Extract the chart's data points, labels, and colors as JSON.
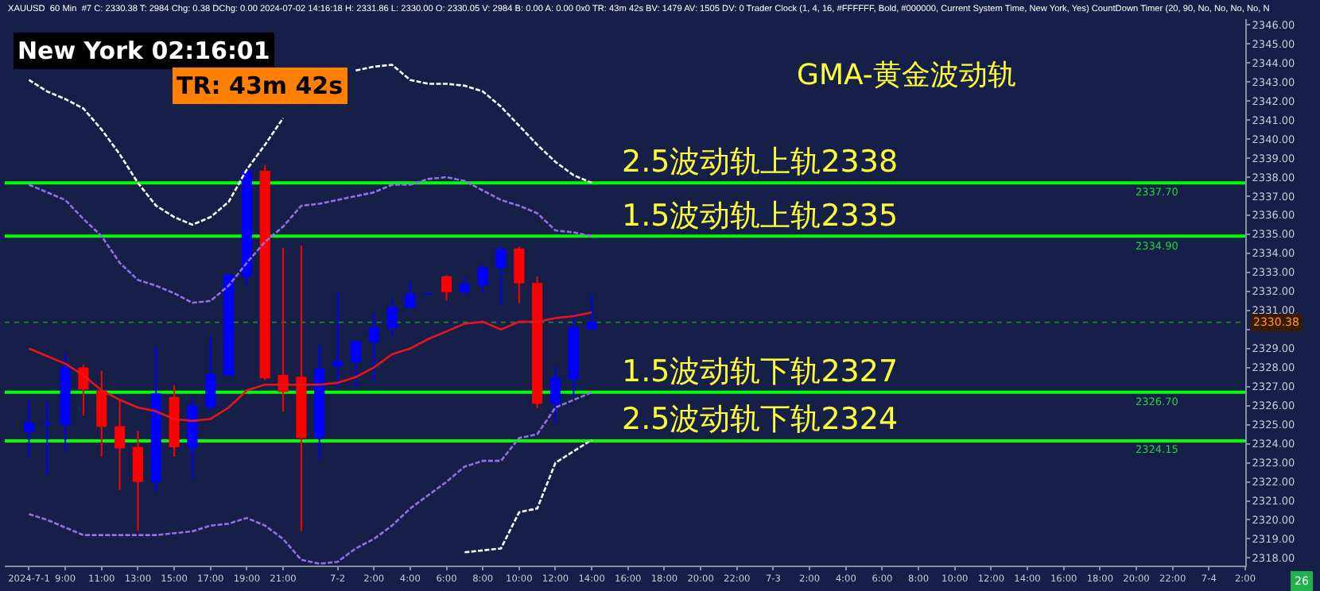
{
  "chart_data": {
    "type": "candlestick",
    "subtitle": "XAUUSD  60 Min  #7 C: 2330.38 T: 2984 Chg: 0.38 DChg: 0.00 2024-07-02 14:16:18 H: 2331.86 L: 2330.00 O: 2330.05 V: 2984 B: 0.00 A: 0.00 0x0 TR: 43m 42s BV: 1479 AV: 1505 DV: 0 Trader Clock (1, 4, 16, #FFFFFF, Bold, #000000, Current System Time, New York, Yes) CountDown Timer (20, 90, No, No, No, No, N",
    "x": [
      "2024-07-01T07:00",
      "2024-07-01T08:00",
      "2024-07-01T09:00",
      "2024-07-01T10:00",
      "2024-07-01T11:00",
      "2024-07-01T12:00",
      "2024-07-01T13:00",
      "2024-07-01T14:00",
      "2024-07-01T15:00",
      "2024-07-01T16:00",
      "2024-07-01T17:00",
      "2024-07-01T18:00",
      "2024-07-01T19:00",
      "2024-07-01T20:00",
      "2024-07-01T21:00",
      "2024-07-01T22:00",
      "2024-07-01T23:00",
      "2024-07-02T00:00",
      "2024-07-02T01:00",
      "2024-07-02T02:00",
      "2024-07-02T03:00",
      "2024-07-02T04:00",
      "2024-07-02T05:00",
      "2024-07-02T06:00",
      "2024-07-02T07:00",
      "2024-07-02T08:00",
      "2024-07-02T09:00",
      "2024-07-02T10:00",
      "2024-07-02T11:00",
      "2024-07-02T12:00",
      "2024-07-02T13:00",
      "2024-07-02T14:00"
    ],
    "ohlc": [
      [
        2324.66,
        2326.28,
        2323.32,
        2325.07
      ],
      [
        2325.04,
        2326.14,
        2322.38,
        2325.04
      ],
      [
        2325.04,
        2328.78,
        2323.64,
        2327.97
      ],
      [
        2327.97,
        2328.16,
        2325.47,
        2326.89
      ],
      [
        2326.76,
        2327.83,
        2323.32,
        2324.93
      ],
      [
        2324.88,
        2326.28,
        2321.57,
        2323.8
      ],
      [
        2323.8,
        2324.66,
        2319.42,
        2322.03
      ],
      [
        2322.03,
        2329.1,
        2321.44,
        2326.6
      ],
      [
        2326.41,
        2327.08,
        2323.32,
        2323.86
      ],
      [
        2323.8,
        2326.41,
        2322.11,
        2325.95
      ],
      [
        2325.95,
        2329.64,
        2325.74,
        2327.62
      ],
      [
        2327.62,
        2332.9,
        2327.5,
        2332.83
      ],
      [
        2332.81,
        2338.29,
        2332.32,
        2338.29
      ],
      [
        2338.29,
        2338.64,
        2327.35,
        2327.48
      ],
      [
        2327.57,
        2334.29,
        2325.68,
        2326.76
      ],
      [
        2327.48,
        2334.42,
        2319.42,
        2324.34
      ],
      [
        2324.34,
        2329.2,
        2323.18,
        2327.89
      ],
      [
        2328.1,
        2331.97,
        2326.95,
        2328.29
      ],
      [
        2328.32,
        2329.34,
        2326.95,
        2329.34
      ],
      [
        2329.37,
        2330.85,
        2327.22,
        2330.07
      ],
      [
        2330.09,
        2331.65,
        2329.64,
        2331.14
      ],
      [
        2331.17,
        2332.51,
        2331.11,
        2331.84
      ],
      [
        2331.87,
        2331.9,
        2331.85,
        2331.87
      ],
      [
        2332.75,
        2332.86,
        2331.52,
        2332.0
      ],
      [
        2332.0,
        2332.73,
        2331.84,
        2332.35
      ],
      [
        2332.38,
        2333.4,
        2331.92,
        2333.21
      ],
      [
        2333.26,
        2334.34,
        2331.3,
        2334.18
      ],
      [
        2334.21,
        2334.34,
        2331.38,
        2332.46
      ],
      [
        2332.4,
        2332.78,
        2325.87,
        2326.14
      ],
      [
        2326.14,
        2328.02,
        2325.07,
        2327.43
      ],
      [
        2327.4,
        2330.85,
        2326.49,
        2330.07
      ],
      [
        2330.05,
        2331.86,
        2330.0,
        2330.38
      ]
    ],
    "colors": [
      "#0000ff",
      "#0000ff",
      "#0000ff",
      "#ff0000",
      "#ff0000",
      "#ff0000",
      "#ff0000",
      "#0000ff",
      "#ff0000",
      "#0000ff",
      "#0000ff",
      "#0000ff",
      "#0000ff",
      "#ff0000",
      "#ff0000",
      "#ff0000",
      "#0000ff",
      "#0000ff",
      "#0000ff",
      "#0000ff",
      "#0000ff",
      "#0000ff",
      "#0000ff",
      "#ff0000",
      "#0000ff",
      "#0000ff",
      "#0000ff",
      "#ff0000",
      "#ff0000",
      "#0000ff",
      "#0000ff",
      "#0000ff"
    ],
    "series": [
      {
        "type": "line",
        "color": "#ffffff",
        "line_style": "dashed",
        "values": [
          2343.1,
          2342.5,
          2342.1,
          2341.6,
          2340.5,
          2339.2,
          2337.7,
          2336.5,
          2335.9,
          2335.5,
          2335.9,
          2336.7,
          2338.4,
          2339.7,
          2341.1,
          null,
          null,
          null,
          2343.6,
          2343.8,
          2343.9,
          2343.1,
          2342.9,
          2342.9,
          2342.8,
          2342.5,
          2341.7,
          2340.7,
          2339.7,
          2338.8,
          2338.1,
          2337.7
        ]
      },
      {
        "type": "line",
        "color": "#9370e8",
        "line_style": "dashed",
        "values": [
          2337.6,
          2337.2,
          2336.8,
          2335.8,
          2334.9,
          2333.5,
          2332.6,
          2332.3,
          2331.9,
          2331.4,
          2331.5,
          2332.3,
          2333.5,
          2334.6,
          2335.4,
          2336.5,
          2336.6,
          2336.8,
          2337.0,
          2337.2,
          2337.6,
          2337.6,
          2337.9,
          2338.0,
          2337.8,
          2337.3,
          2336.8,
          2336.5,
          2336.1,
          2335.2,
          2335.1,
          2334.9
        ]
      },
      {
        "type": "line",
        "color": "#e8141c",
        "line_style": "solid",
        "values": [
          2329.0,
          2328.6,
          2328.2,
          2327.6,
          2326.8,
          2326.3,
          2325.9,
          2325.7,
          2325.3,
          2325.2,
          2325.3,
          2325.9,
          2326.8,
          2327.1,
          2327.1,
          2327.1,
          2327.1,
          2327.2,
          2327.5,
          2328.0,
          2328.7,
          2329.0,
          2329.5,
          2329.9,
          2330.3,
          2330.4,
          2330.0,
          2330.4,
          2330.4,
          2330.6,
          2330.7,
          2330.9
        ]
      },
      {
        "type": "line",
        "color": "#9370e8",
        "line_style": "dashed",
        "values": [
          2320.3,
          2320.0,
          2319.6,
          2319.2,
          2319.2,
          2319.2,
          2319.2,
          2319.2,
          2319.3,
          2319.4,
          2319.7,
          2319.8,
          2320.1,
          2319.7,
          2319.0,
          2317.9,
          2317.7,
          2317.8,
          2318.5,
          2319.0,
          2319.7,
          2320.6,
          2321.3,
          2322.0,
          2322.8,
          2323.1,
          2323.1,
          2324.3,
          2324.5,
          2325.9,
          2326.3,
          2326.7
        ]
      },
      {
        "type": "line",
        "color": "#ffffff",
        "line_style": "dashed",
        "values": [
          null,
          null,
          null,
          null,
          null,
          null,
          null,
          null,
          null,
          null,
          null,
          null,
          null,
          null,
          null,
          null,
          null,
          null,
          null,
          null,
          null,
          null,
          null,
          null,
          2318.3,
          2318.4,
          2318.5,
          2320.4,
          2320.6,
          2323.0,
          2323.6,
          2324.2
        ]
      }
    ],
    "ref_lines": [
      {
        "axis": "y",
        "value": 2337.7,
        "label": "2.5波动轨上轨2338",
        "color": "#00ff00",
        "line_style": "solid"
      },
      {
        "axis": "y",
        "value": 2334.9,
        "label": "1.5波动轨上轨2335",
        "color": "#00ff00",
        "line_style": "solid"
      },
      {
        "axis": "y",
        "value": 2326.7,
        "label": "1.5波动轨下轨2327",
        "color": "#00ff00",
        "line_style": "solid"
      },
      {
        "axis": "y",
        "value": 2324.15,
        "label": "2.5波动轨下轨2324",
        "color": "#00ff00",
        "line_style": "solid"
      },
      {
        "axis": "y",
        "value": 2330.38,
        "label": "2330.38",
        "color": "#1f7a3a",
        "line_style": "dotted"
      }
    ],
    "annotations": [
      "New York 02:16:01",
      "TR: 43m 42s",
      "GMA-黄金波动轨",
      {
        "text": "2337.70",
        "x": "2024-07-03T22:30",
        "y": 2337.7
      },
      {
        "text": "2334.90",
        "x": "2024-07-03T22:30",
        "y": 2334.9
      },
      {
        "text": "2326.70",
        "x": "2024-07-03T22:30",
        "y": 2326.7
      },
      {
        "text": "2324.15",
        "x": "2024-07-03T22:30",
        "y": 2324.15
      },
      "26"
    ],
    "xlim": [
      "2024-07-01T05:40",
      "2024-07-04T02:00"
    ],
    "xticks": [
      {
        "value": "2024-07-01T07:00",
        "label": "2024-7-1"
      },
      {
        "value": "2024-07-01T09:00",
        "label": "9:00"
      },
      {
        "value": "2024-07-01T11:00",
        "label": "11:00"
      },
      {
        "value": "2024-07-01T13:00",
        "label": "13:00"
      },
      {
        "value": "2024-07-01T15:00",
        "label": "15:00"
      },
      {
        "value": "2024-07-01T17:00",
        "label": "17:00"
      },
      {
        "value": "2024-07-01T19:00",
        "label": "19:00"
      },
      {
        "value": "2024-07-01T21:00",
        "label": "21:00"
      },
      {
        "value": "2024-07-02T00:00",
        "label": "7-2"
      },
      {
        "value": "2024-07-02T02:00",
        "label": "2:00"
      },
      {
        "value": "2024-07-02T04:00",
        "label": "4:00"
      },
      {
        "value": "2024-07-02T06:00",
        "label": "6:00"
      },
      {
        "value": "2024-07-02T08:00",
        "label": "8:00"
      },
      {
        "value": "2024-07-02T10:00",
        "label": "10:00"
      },
      {
        "value": "2024-07-02T12:00",
        "label": "12:00"
      },
      {
        "value": "2024-07-02T14:00",
        "label": "14:00"
      },
      {
        "value": "2024-07-02T16:00",
        "label": "16:00"
      },
      {
        "value": "2024-07-02T18:00",
        "label": "18:00"
      },
      {
        "value": "2024-07-02T20:00",
        "label": "20:00"
      },
      {
        "value": "2024-07-02T22:00",
        "label": "22:00"
      },
      {
        "value": "2024-07-03T00:00",
        "label": "7-3"
      },
      {
        "value": "2024-07-03T02:00",
        "label": "2:00"
      },
      {
        "value": "2024-07-03T04:00",
        "label": "4:00"
      },
      {
        "value": "2024-07-03T06:00",
        "label": "6:00"
      },
      {
        "value": "2024-07-03T08:00",
        "label": "8:00"
      },
      {
        "value": "2024-07-03T10:00",
        "label": "10:00"
      },
      {
        "value": "2024-07-03T12:00",
        "label": "12:00"
      },
      {
        "value": "2024-07-03T14:00",
        "label": "14:00"
      },
      {
        "value": "2024-07-03T16:00",
        "label": "16:00"
      },
      {
        "value": "2024-07-03T18:00",
        "label": "18:00"
      },
      {
        "value": "2024-07-03T20:00",
        "label": "20:00"
      },
      {
        "value": "2024-07-03T22:00",
        "label": "22:00"
      },
      {
        "value": "2024-07-04T00:00",
        "label": "7-4"
      },
      {
        "value": "2024-07-04T02:00",
        "label": "2:00"
      }
    ],
    "ylim": [
      2317.6,
      2346.3
    ],
    "yticks": [
      {
        "value": 2318,
        "label": "2318.00"
      },
      {
        "value": 2319,
        "label": "2319.00"
      },
      {
        "value": 2320,
        "label": "2320.00"
      },
      {
        "value": 2321,
        "label": "2321.00"
      },
      {
        "value": 2322,
        "label": "2322.00"
      },
      {
        "value": 2323,
        "label": "2323.00"
      },
      {
        "value": 2324,
        "label": "2324.00"
      },
      {
        "value": 2325,
        "label": "2325.00"
      },
      {
        "value": 2326,
        "label": "2326.00"
      },
      {
        "value": 2327,
        "label": "2327.00"
      },
      {
        "value": 2328,
        "label": "2328.00"
      },
      {
        "value": 2329,
        "label": "2329.00"
      },
      {
        "value": 2330,
        "label": null
      },
      {
        "value": 2331,
        "label": "2331.00"
      },
      {
        "value": 2332,
        "label": "2332.00"
      },
      {
        "value": 2333,
        "label": "2333.00"
      },
      {
        "value": 2334,
        "label": "2334.00"
      },
      {
        "value": 2335,
        "label": "2335.00"
      },
      {
        "value": 2336,
        "label": "2336.00"
      },
      {
        "value": 2337,
        "label": "2337.00"
      },
      {
        "value": 2338,
        "label": "2338.00"
      },
      {
        "value": 2339,
        "label": "2339.00"
      },
      {
        "value": 2340,
        "label": "2340.00"
      },
      {
        "value": 2341,
        "label": "2341.00"
      },
      {
        "value": 2342,
        "label": "2342.00"
      },
      {
        "value": 2343,
        "label": "2343.00"
      },
      {
        "value": 2344,
        "label": "2344.00"
      },
      {
        "value": 2345,
        "label": "2345.00"
      },
      {
        "value": 2346,
        "label": "2346.00"
      }
    ],
    "grid": false,
    "marker": "none"
  }
}
